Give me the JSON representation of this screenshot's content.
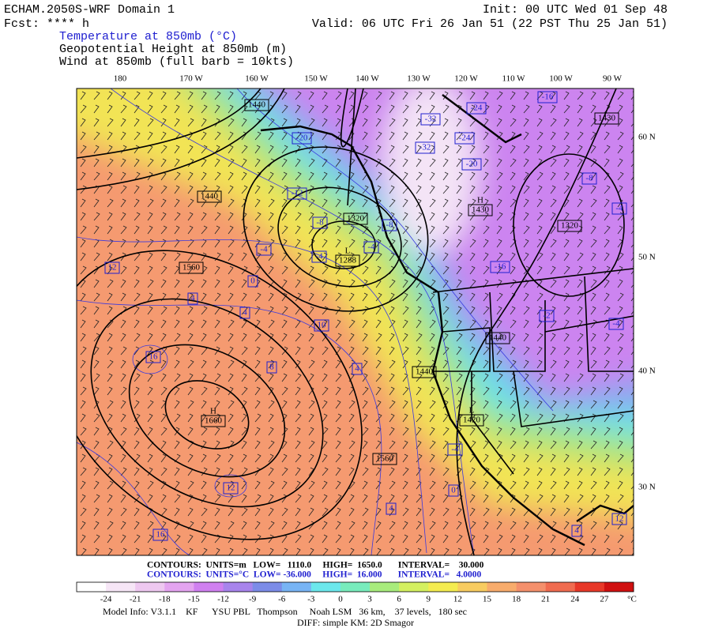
{
  "header": {
    "model": "ECHAM.2050S-WRF Domain 1",
    "fcst": "Fcst: **** h",
    "field_temperature": "Temperature at 850mb (°C)",
    "field_height": "Geopotential Height at 850mb (m)",
    "field_wind": "Wind at 850mb (full barb = 10kts)",
    "init": "Init: 00 UTC Wed 01 Sep 48",
    "valid": "Valid: 06 UTC Fri 26 Jan 51 (22 PST Thu 25 Jan 51)"
  },
  "map": {
    "longitude_labels": [
      "180",
      "170 W",
      "160 W",
      "150 W",
      "140 W",
      "130 W",
      "120 W",
      "110 W",
      "100 W",
      "90 W"
    ],
    "latitude_labels": [
      "60 N",
      "50 N",
      "40 N",
      "30 N"
    ],
    "height_labels": [
      "1440",
      "1440",
      "1320",
      "1560",
      "1440",
      "1440",
      "1560",
      "1320",
      "1430"
    ],
    "pressure_centers": [
      {
        "symbol": "H",
        "label": "1660"
      },
      {
        "symbol": "L",
        "label": "1288"
      },
      {
        "symbol": "H",
        "label": "1430"
      },
      {
        "symbol": "L",
        "label": "1420"
      }
    ],
    "temperature_labels": [
      "-16",
      "-24",
      "-32",
      "-32",
      "-24",
      "-20",
      "-20",
      "-12",
      "-8",
      "-8",
      "-4",
      "-4",
      "-4",
      "0",
      "-16",
      "-8",
      "-4",
      "-2",
      "-4",
      "12",
      "4",
      "4",
      "10",
      "16",
      "8",
      "4",
      "-4",
      "0",
      "4",
      "12",
      "16",
      "4",
      "12"
    ]
  },
  "legend": {
    "height_contours": "CONTOURS:  UNITS=m   LOW=   1110.0     HIGH=  1650.0       INTERVAL=    30.000",
    "temperature_contours": "CONTOURS:  UNITS=°C  LOW= -36.000     HIGH=  16.000       INTERVAL=   4.0000"
  },
  "colorbar": {
    "labels": [
      -24,
      -21,
      -18,
      -15,
      -12,
      -9,
      -6,
      -3,
      0,
      3,
      6,
      9,
      12,
      15,
      18,
      21,
      24,
      27
    ],
    "unit": "°C",
    "colors": [
      "#ffffff",
      "#f6e6f6",
      "#eec8f0",
      "#e4a4f0",
      "#d080f0",
      "#a884ec",
      "#7c8ce8",
      "#78b4f4",
      "#6ce8ec",
      "#78ecbc",
      "#a8ec7c",
      "#d4f060",
      "#f4ec50",
      "#f8cc60",
      "#f8ac6c",
      "#f4906c",
      "#f06c50",
      "#e83828",
      "#d01010"
    ]
  },
  "footer": {
    "model_info": "Model Info: V3.1.1    KF      YSU PBL   Thompson     Noah LSM   36 km,    37 levels,   180 sec",
    "diff": "DIFF: simple KM: 2D Smagor"
  }
}
